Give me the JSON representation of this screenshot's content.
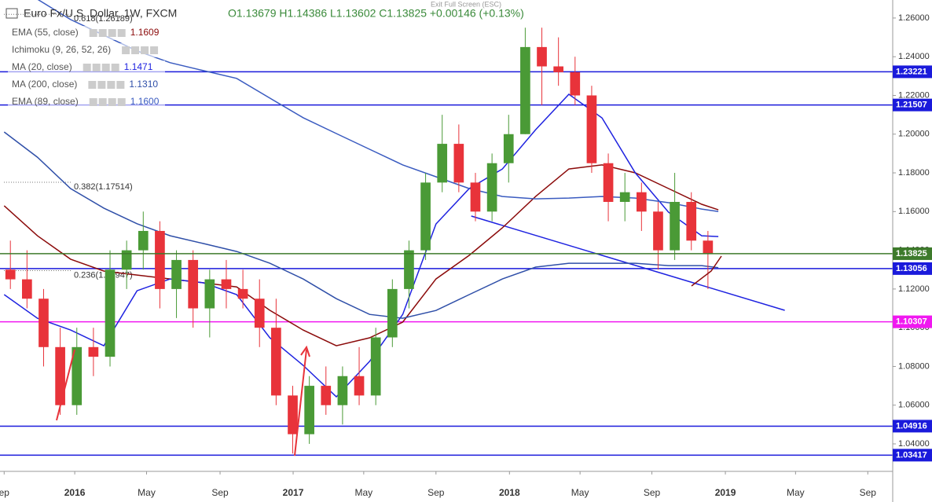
{
  "chart_data": {
    "type": "candlestick",
    "header": {
      "symbol": "Euro Fx/U.S. Dollar, 1W, FXCM",
      "ohlc": "O1.13679 H1.14386 L1.13602 C1.13825 +0.00146 (+0.13%)",
      "notice": "Exit Full Screen (ESC)"
    },
    "xlim": [
      -1,
      214
    ],
    "xticks": [
      {
        "value": 0,
        "label": "ep"
      },
      {
        "value": 17,
        "label": "2016"
      },
      {
        "value": 34.3,
        "label": "May"
      },
      {
        "value": 52,
        "label": "Sep"
      },
      {
        "value": 69.6,
        "label": "2017"
      },
      {
        "value": 86.6,
        "label": "May"
      },
      {
        "value": 104,
        "label": "Sep"
      },
      {
        "value": 121.7,
        "label": "2018"
      },
      {
        "value": 138.7,
        "label": "May"
      },
      {
        "value": 156,
        "label": "Sep"
      },
      {
        "value": 173.7,
        "label": "2019"
      },
      {
        "value": 190.6,
        "label": "May"
      },
      {
        "value": 208,
        "label": "Sep"
      }
    ],
    "ylim": [
      1.0258,
      1.2693
    ],
    "yticks": [
      {
        "value": 1.04,
        "label": "1.04000"
      },
      {
        "value": 1.06,
        "label": "1.06000"
      },
      {
        "value": 1.08,
        "label": "1.08000"
      },
      {
        "value": 1.1,
        "label": "1.10000"
      },
      {
        "value": 1.12,
        "label": "1.12000"
      },
      {
        "value": 1.14,
        "label": "1.14000"
      },
      {
        "value": 1.16,
        "label": "1.16000"
      },
      {
        "value": 1.18,
        "label": "1.18000"
      },
      {
        "value": 1.2,
        "label": "1.20000"
      },
      {
        "value": 1.22,
        "label": "1.22000"
      },
      {
        "value": 1.24,
        "label": "1.24000"
      },
      {
        "value": 1.26,
        "label": "1.26000"
      }
    ],
    "up_color": "#4a9a36",
    "down_color": "#e8333a",
    "candles": {
      "x": [
        1.5,
        5.5,
        9.5,
        13.5,
        17.5,
        21.5,
        25.5,
        29.5,
        33.5,
        37.5,
        41.5,
        45.5,
        49.5,
        53.5,
        57.5,
        61.5,
        65.5,
        69.5,
        73.5,
        77.5,
        81.5,
        85.5,
        89.5,
        93.5,
        97.5,
        101.5,
        105.5,
        109.5,
        113.5,
        117.5,
        121.5,
        125.5,
        129.5,
        133.5,
        137.5,
        141.5,
        145.5,
        149.5,
        153.5,
        157.5,
        161.5,
        165.5,
        169.5
      ],
      "open": [
        1.13,
        1.125,
        1.115,
        1.09,
        1.06,
        1.09,
        1.085,
        1.13,
        1.14,
        1.15,
        1.12,
        1.135,
        1.11,
        1.125,
        1.12,
        1.115,
        1.1,
        1.065,
        1.045,
        1.07,
        1.06,
        1.075,
        1.065,
        1.095,
        1.12,
        1.14,
        1.175,
        1.195,
        1.175,
        1.16,
        1.185,
        1.2,
        1.245,
        1.235,
        1.232,
        1.22,
        1.185,
        1.165,
        1.17,
        1.16,
        1.14,
        1.165,
        1.145
      ],
      "high": [
        1.145,
        1.14,
        1.12,
        1.1,
        1.1,
        1.1,
        1.14,
        1.145,
        1.16,
        1.155,
        1.14,
        1.14,
        1.13,
        1.135,
        1.13,
        1.125,
        1.115,
        1.07,
        1.075,
        1.08,
        1.08,
        1.09,
        1.1,
        1.125,
        1.145,
        1.18,
        1.21,
        1.205,
        1.18,
        1.19,
        1.21,
        1.255,
        1.255,
        1.25,
        1.24,
        1.225,
        1.19,
        1.18,
        1.175,
        1.165,
        1.18,
        1.17,
        1.15
      ],
      "low": [
        1.12,
        1.11,
        1.08,
        1.055,
        1.055,
        1.075,
        1.08,
        1.12,
        1.13,
        1.11,
        1.105,
        1.1,
        1.095,
        1.11,
        1.11,
        1.09,
        1.06,
        1.035,
        1.04,
        1.055,
        1.05,
        1.06,
        1.06,
        1.09,
        1.11,
        1.135,
        1.17,
        1.17,
        1.155,
        1.155,
        1.175,
        1.2,
        1.215,
        1.225,
        1.215,
        1.18,
        1.155,
        1.155,
        1.15,
        1.13,
        1.135,
        1.14,
        1.12
      ],
      "close": [
        1.125,
        1.115,
        1.09,
        1.06,
        1.09,
        1.085,
        1.13,
        1.14,
        1.15,
        1.12,
        1.135,
        1.11,
        1.125,
        1.12,
        1.115,
        1.1,
        1.065,
        1.045,
        1.07,
        1.06,
        1.075,
        1.065,
        1.095,
        1.12,
        1.14,
        1.175,
        1.195,
        1.175,
        1.16,
        1.185,
        1.2,
        1.245,
        1.235,
        1.232,
        1.22,
        1.185,
        1.165,
        1.17,
        1.16,
        1.14,
        1.165,
        1.145,
        1.13825
      ]
    },
    "line_x": [
      0,
      8,
      16,
      24,
      32,
      40,
      48,
      56,
      64,
      72,
      80,
      88,
      96,
      104,
      112,
      120,
      128,
      136,
      144,
      152,
      160,
      168,
      172
    ],
    "series": [
      {
        "name": "EMA (55, close)",
        "last": "1.1609",
        "color": "#8b0a0a",
        "values": [
          1.163,
          1.1475,
          1.1354,
          1.1293,
          1.1272,
          1.1252,
          1.1232,
          1.1211,
          1.109,
          1.0988,
          1.0907,
          1.0948,
          1.1029,
          1.1252,
          1.1374,
          1.1516,
          1.1678,
          1.182,
          1.1841,
          1.18,
          1.1719,
          1.1638,
          1.1609
        ]
      },
      {
        "name": "MA (20, close)",
        "last": "1.1471",
        "color": "#1e22e0",
        "values": [
          1.1171,
          1.1049,
          1.0988,
          1.0907,
          1.1191,
          1.1252,
          1.1232,
          1.1171,
          1.0948,
          1.0806,
          1.0643,
          1.0826,
          1.1069,
          1.1536,
          1.1719,
          1.182,
          1.2023,
          1.2206,
          1.2084,
          1.18,
          1.1597,
          1.1475,
          1.1471
        ]
      },
      {
        "name": "MA (200, close)",
        "last": "1.1310",
        "color": "#2f4fa8",
        "values": [
          1.2011,
          1.1881,
          1.1719,
          1.1618,
          1.1537,
          1.1475,
          1.1435,
          1.1394,
          1.1333,
          1.1252,
          1.115,
          1.1069,
          1.1049,
          1.1089,
          1.1171,
          1.1252,
          1.1313,
          1.1333,
          1.1333,
          1.1333,
          1.1321,
          1.1321,
          1.131
        ]
      },
      {
        "name": "EMA (89, close)",
        "last": "1.1600",
        "color": "#3a5bc0",
        "values": [
          1.2754,
          1.2697,
          1.2592,
          1.2511,
          1.243,
          1.2369,
          1.2328,
          1.2288,
          1.2186,
          1.2085,
          1.2003,
          1.1922,
          1.1841,
          1.178,
          1.1719,
          1.1678,
          1.1666,
          1.167,
          1.1678,
          1.167,
          1.1646,
          1.1613,
          1.16
        ]
      }
    ],
    "study": {
      "name": "Ichimoku (9, 26, 52, 26)",
      "color": "#888888"
    },
    "trendline": {
      "x": [
        112.5,
        188
      ],
      "values": [
        1.1577,
        1.109
      ],
      "color": "#1e22e0"
    },
    "fib": [
      {
        "text": "0.618(1.26189)",
        "value": 1.26189
      },
      {
        "text": "0.382(1.17514)",
        "value": 1.17514
      },
      {
        "text": "0.236(1.12947)",
        "value": 1.12947
      }
    ],
    "levels": [
      {
        "value": 1.23221,
        "color": "#1a1adb"
      },
      {
        "value": 1.21507,
        "color": "#1a1adb"
      },
      {
        "value": 1.13056,
        "color": "#1a1adb"
      },
      {
        "value": 1.10307,
        "color": "#f018f0"
      },
      {
        "value": 1.04916,
        "color": "#1a1adb"
      },
      {
        "value": 1.03417,
        "color": "#1a1adb"
      }
    ],
    "last_price": {
      "value": 1.13825,
      "color": "#3d7a2b"
    }
  }
}
